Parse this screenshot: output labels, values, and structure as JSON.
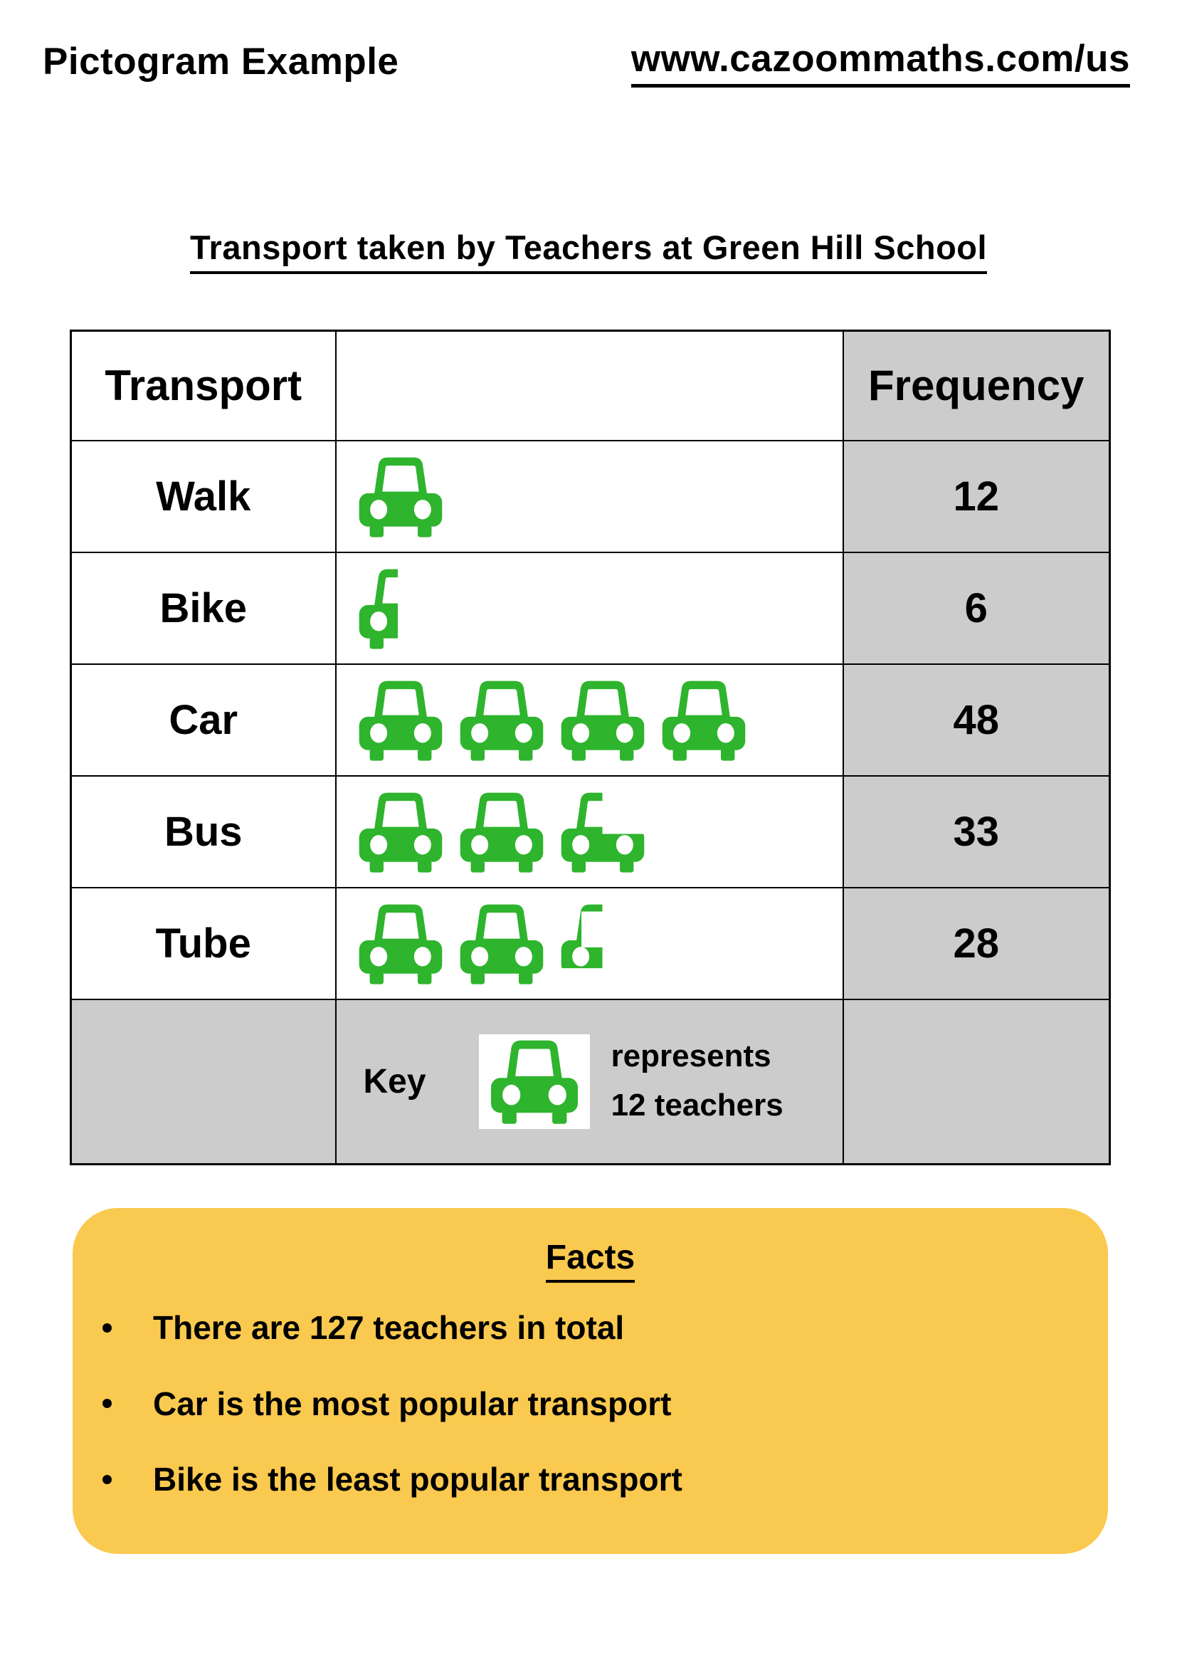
{
  "page": {
    "header_left": "Pictogram Example",
    "header_right": "www.cazoommaths.com/us",
    "title": "Transport taken by Teachers at Green Hill School"
  },
  "colors": {
    "icon_green": "#2EB42D",
    "cell_gray": "#CCCCCC",
    "facts_yellow": "#FAC94F",
    "text_black": "#000000"
  },
  "table": {
    "headers": {
      "transport": "Transport",
      "pictogram": "",
      "frequency": "Frequency"
    },
    "rows": [
      {
        "label": "Walk",
        "frequency": "12",
        "symbols_full": 1,
        "symbol_partial": "none"
      },
      {
        "label": "Bike",
        "frequency": "6",
        "symbols_full": 0,
        "symbol_partial": "half"
      },
      {
        "label": "Car",
        "frequency": "48",
        "symbols_full": 4,
        "symbol_partial": "none"
      },
      {
        "label": "Bus",
        "frequency": "33",
        "symbols_full": 2,
        "symbol_partial": "three_quarter"
      },
      {
        "label": "Tube",
        "frequency": "28",
        "symbols_full": 2,
        "symbol_partial": "one_third"
      }
    ],
    "key": {
      "label": "Key",
      "symbol": "car-icon",
      "represents": "represents",
      "amount": "12 teachers"
    }
  },
  "facts": {
    "title": "Facts",
    "items": [
      "There are 127 teachers in total",
      "Car is the most popular transport",
      "Bike is the least popular transport"
    ]
  },
  "chart_data": {
    "type": "pictogram",
    "title": "Transport taken by Teachers at Green Hill School",
    "categories": [
      "Walk",
      "Bike",
      "Car",
      "Bus",
      "Tube"
    ],
    "values": [
      12,
      6,
      48,
      33,
      28
    ],
    "symbol": "car-icon",
    "symbol_color": "#2EB42D",
    "value_per_symbol": 12,
    "symbols_shown": [
      1,
      0.5,
      4,
      2.75,
      2.33
    ],
    "key_text": "Key: one car represents 12 teachers",
    "total": 127
  }
}
